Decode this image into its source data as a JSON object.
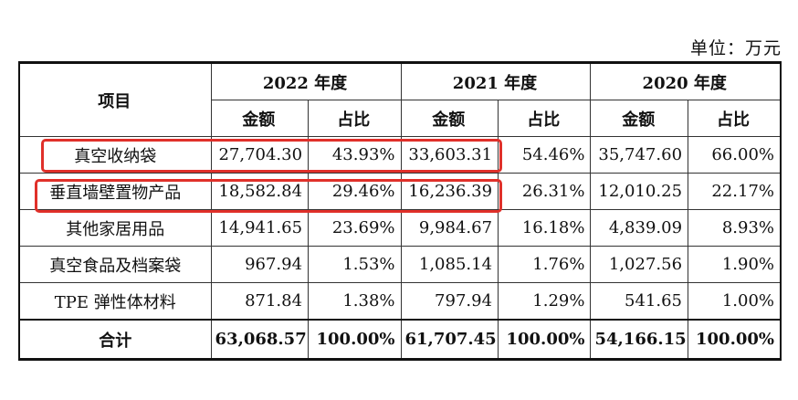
{
  "unit_label": "单位：万元",
  "table": {
    "item_header": "项目",
    "years": [
      "2022 年度",
      "2021 年度",
      "2020 年度"
    ],
    "sub_headers": {
      "amount": "金额",
      "ratio": "占比"
    },
    "rows": [
      {
        "item": "真空收纳袋",
        "values": [
          "27,704.30",
          "43.93%",
          "33,603.31",
          "54.46%",
          "35,747.60",
          "66.00%"
        ]
      },
      {
        "item": "垂直墙壁置物产品",
        "values": [
          "18,582.84",
          "29.46%",
          "16,236.39",
          "26.31%",
          "12,010.25",
          "22.17%"
        ]
      },
      {
        "item": "其他家居用品",
        "values": [
          "14,941.65",
          "23.69%",
          "9,984.67",
          "16.18%",
          "4,839.09",
          "8.93%"
        ]
      },
      {
        "item": "真空食品及档案袋",
        "values": [
          "967.94",
          "1.53%",
          "1,085.14",
          "1.76%",
          "1,027.56",
          "1.90%"
        ]
      },
      {
        "item": "TPE 弹性体材料",
        "values": [
          "871.84",
          "1.38%",
          "797.94",
          "1.29%",
          "541.65",
          "1.00%"
        ]
      }
    ],
    "total": {
      "item": "合计",
      "values": [
        "63,068.57",
        "100.00%",
        "61,707.45",
        "100.00%",
        "54,166.15",
        "100.00%"
      ]
    }
  },
  "highlight_color": "#e0302a"
}
